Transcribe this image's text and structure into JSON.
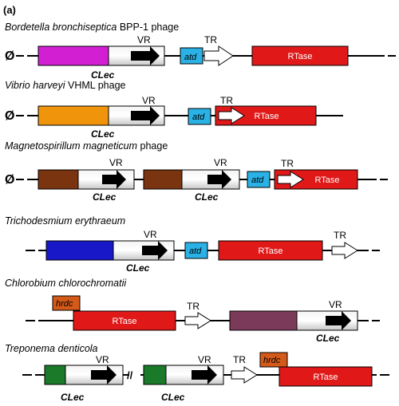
{
  "panel_label": "(a)",
  "labels": {
    "vr": "VR",
    "tr": "TR",
    "atd": "atd",
    "rtase": "RTase",
    "clec": "CLec",
    "hrdc": "hrdc",
    "null_symbol": "Ø",
    "gap_mark": "//"
  },
  "organisms": [
    {
      "species": "Bordetella bronchiseptica",
      "suffix": " BPP-1 phage"
    },
    {
      "species": "Vibrio harveyi",
      "suffix": " VHML phage"
    },
    {
      "species": "Magnetospirillum magneticum",
      "suffix": " phage"
    },
    {
      "species": "Trichodesmium erythraeum",
      "suffix": ""
    },
    {
      "species": "Chlorobium chlorochromatii",
      "suffix": ""
    },
    {
      "species": "Treponema denticola",
      "suffix": ""
    }
  ],
  "colors": {
    "magenta": "#d21fd2",
    "orange": "#f0940c",
    "brown": "#7b3410",
    "blue": "#1818c8",
    "purple": "#7c3a5a",
    "green": "#1a7a2a",
    "rtase": "#e01818",
    "atd": "#2ab2e6",
    "hrdc": "#d45a1a",
    "clec_body": "#dedede"
  }
}
